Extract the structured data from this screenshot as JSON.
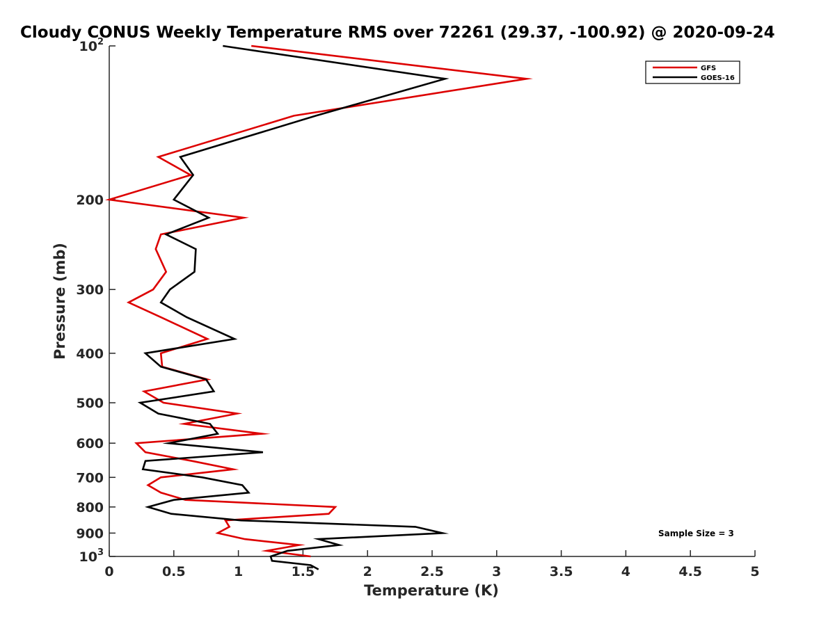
{
  "chart_data": {
    "type": "line",
    "title": "Cloudy CONUS Weekly Temperature RMS over 72261 (29.37, -100.92) @ 2020-09-24",
    "xlabel": "Temperature (K)",
    "ylabel": "Pressure (mb)",
    "xlim": [
      0,
      5
    ],
    "ylim": [
      100,
      1000
    ],
    "yscale": "log",
    "y_reversed": true,
    "grid": false,
    "legend_position": "top-right",
    "x_ticks": [
      "0",
      "0.5",
      "1",
      "1.5",
      "2",
      "2.5",
      "3",
      "3.5",
      "4",
      "4.5",
      "5"
    ],
    "y_ticks": [
      {
        "value": 100,
        "label": "10",
        "sup": "2"
      },
      {
        "value": 200,
        "label": "200",
        "sup": ""
      },
      {
        "value": 300,
        "label": "300",
        "sup": ""
      },
      {
        "value": 400,
        "label": "400",
        "sup": ""
      },
      {
        "value": 500,
        "label": "500",
        "sup": ""
      },
      {
        "value": 600,
        "label": "600",
        "sup": ""
      },
      {
        "value": 700,
        "label": "700",
        "sup": ""
      },
      {
        "value": 800,
        "label": "800",
        "sup": ""
      },
      {
        "value": 900,
        "label": "900",
        "sup": ""
      },
      {
        "value": 1000,
        "label": "10",
        "sup": "3"
      }
    ],
    "annotation": "Sample Size = 3",
    "series": [
      {
        "name": "GFS",
        "color": "#dd0000",
        "points": [
          [
            1.1,
            100
          ],
          [
            3.23,
            116
          ],
          [
            1.43,
            137
          ],
          [
            0.38,
            165
          ],
          [
            0.63,
            179
          ],
          [
            0.0,
            200
          ],
          [
            1.04,
            217
          ],
          [
            0.4,
            234
          ],
          [
            0.36,
            250
          ],
          [
            0.44,
            277
          ],
          [
            0.34,
            300
          ],
          [
            0.15,
            318
          ],
          [
            0.4,
            340
          ],
          [
            0.76,
            375
          ],
          [
            0.4,
            400
          ],
          [
            0.41,
            425
          ],
          [
            0.76,
            450
          ],
          [
            0.27,
            475
          ],
          [
            0.42,
            500
          ],
          [
            0.99,
            525
          ],
          [
            0.58,
            550
          ],
          [
            1.18,
            575
          ],
          [
            0.21,
            600
          ],
          [
            0.28,
            625
          ],
          [
            0.64,
            650
          ],
          [
            0.96,
            675
          ],
          [
            0.4,
            700
          ],
          [
            0.3,
            725
          ],
          [
            0.4,
            750
          ],
          [
            0.59,
            775
          ],
          [
            1.75,
            800
          ],
          [
            1.7,
            825
          ],
          [
            0.9,
            850
          ],
          [
            0.93,
            875
          ],
          [
            0.84,
            900
          ],
          [
            1.05,
            925
          ],
          [
            1.47,
            950
          ],
          [
            1.22,
            975
          ],
          [
            1.56,
            1000
          ]
        ]
      },
      {
        "name": "GOES-16",
        "color": "#000000",
        "points": [
          [
            0.88,
            100
          ],
          [
            2.6,
            116
          ],
          [
            1.6,
            137
          ],
          [
            0.55,
            165
          ],
          [
            0.65,
            179
          ],
          [
            0.5,
            200
          ],
          [
            0.77,
            217
          ],
          [
            0.44,
            234
          ],
          [
            0.67,
            250
          ],
          [
            0.66,
            277
          ],
          [
            0.47,
            300
          ],
          [
            0.4,
            318
          ],
          [
            0.6,
            340
          ],
          [
            0.97,
            375
          ],
          [
            0.28,
            400
          ],
          [
            0.4,
            425
          ],
          [
            0.75,
            450
          ],
          [
            0.81,
            475
          ],
          [
            0.24,
            500
          ],
          [
            0.38,
            525
          ],
          [
            0.78,
            550
          ],
          [
            0.84,
            575
          ],
          [
            0.46,
            600
          ],
          [
            1.19,
            625
          ],
          [
            0.28,
            650
          ],
          [
            0.26,
            675
          ],
          [
            0.72,
            700
          ],
          [
            1.03,
            725
          ],
          [
            1.08,
            750
          ],
          [
            0.5,
            775
          ],
          [
            0.3,
            800
          ],
          [
            0.48,
            825
          ],
          [
            1.02,
            850
          ],
          [
            2.37,
            875
          ],
          [
            2.58,
            900
          ],
          [
            1.62,
            925
          ],
          [
            1.78,
            950
          ],
          [
            1.38,
            975
          ],
          [
            1.25,
            1000
          ],
          [
            1.26,
            1020
          ],
          [
            1.56,
            1040
          ],
          [
            1.62,
            1060
          ]
        ]
      }
    ]
  }
}
